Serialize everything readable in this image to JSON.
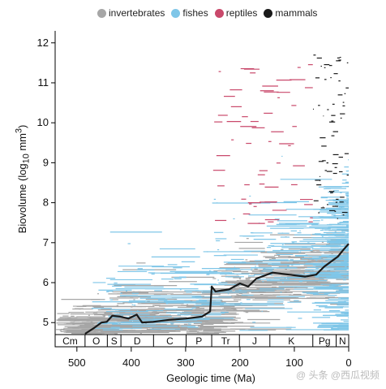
{
  "chart_data": {
    "type": "scatter",
    "xlabel": "Geologic time (Ma)",
    "ylabel": "Biovolume (log10 mm3)",
    "ylabel_parts": {
      "main": "Biovolume (log",
      "sub": "10",
      "mid": " mm",
      "sup": "3",
      "end": ")"
    },
    "xlim": [
      540,
      0
    ],
    "ylim": [
      4.7,
      12.3
    ],
    "x_reversed": true,
    "x_ticks": [
      500,
      400,
      300,
      200,
      100,
      0
    ],
    "y_ticks": [
      5,
      6,
      7,
      8,
      9,
      10,
      11,
      12
    ],
    "legend_position": "top",
    "series": [
      {
        "name": "invertebrates",
        "color": "#a6a6a6",
        "description": "horizontal ranges spanning roughly log10 4.7–8.3 from 540 to 0 Ma"
      },
      {
        "name": "fishes",
        "color": "#7fc6e8",
        "description": "horizontal ranges spanning roughly log10 5–10 from 480 to 0 Ma"
      },
      {
        "name": "reptiles",
        "color": "#c9496b",
        "description": "horizontal ranges spanning roughly log10 7.5–11.5 from 260 to 66 Ma"
      },
      {
        "name": "mammals",
        "color": "#1a1a1a",
        "description": "short ranges spanning roughly log10 8–11.7 from 66 to 0 Ma"
      }
    ],
    "mean_line": {
      "color": "#1a1a1a",
      "points": [
        [
          485,
          4.72
        ],
        [
          470,
          4.85
        ],
        [
          455,
          5.0
        ],
        [
          445,
          5.02
        ],
        [
          435,
          5.17
        ],
        [
          420,
          5.15
        ],
        [
          405,
          5.1
        ],
        [
          390,
          5.2
        ],
        [
          380,
          5.0
        ],
        [
          360,
          5.02
        ],
        [
          330,
          5.07
        ],
        [
          300,
          5.1
        ],
        [
          270,
          5.15
        ],
        [
          255,
          5.28
        ],
        [
          252,
          5.9
        ],
        [
          245,
          5.78
        ],
        [
          220,
          5.83
        ],
        [
          200,
          5.98
        ],
        [
          185,
          5.9
        ],
        [
          170,
          6.1
        ],
        [
          140,
          6.25
        ],
        [
          110,
          6.2
        ],
        [
          80,
          6.15
        ],
        [
          60,
          6.2
        ],
        [
          45,
          6.4
        ],
        [
          20,
          6.65
        ],
        [
          8,
          6.85
        ],
        [
          0,
          6.97
        ]
      ]
    },
    "periods": [
      {
        "label": "Cm",
        "start": 541,
        "end": 485
      },
      {
        "label": "O",
        "start": 485,
        "end": 444
      },
      {
        "label": "S",
        "start": 444,
        "end": 419
      },
      {
        "label": "D",
        "start": 419,
        "end": 359
      },
      {
        "label": "C",
        "start": 359,
        "end": 299
      },
      {
        "label": "P",
        "start": 299,
        "end": 252
      },
      {
        "label": "Tr",
        "start": 252,
        "end": 201
      },
      {
        "label": "J",
        "start": 201,
        "end": 145
      },
      {
        "label": "K",
        "start": 145,
        "end": 66
      },
      {
        "label": "Pg",
        "start": 66,
        "end": 23
      },
      {
        "label": "N",
        "start": 23,
        "end": 0
      }
    ]
  },
  "legend": {
    "invertebrates": "invertebrates",
    "fishes": "fishes",
    "reptiles": "reptiles",
    "mammals": "mammals"
  },
  "watermark": "@ 头条 @西瓜视频"
}
